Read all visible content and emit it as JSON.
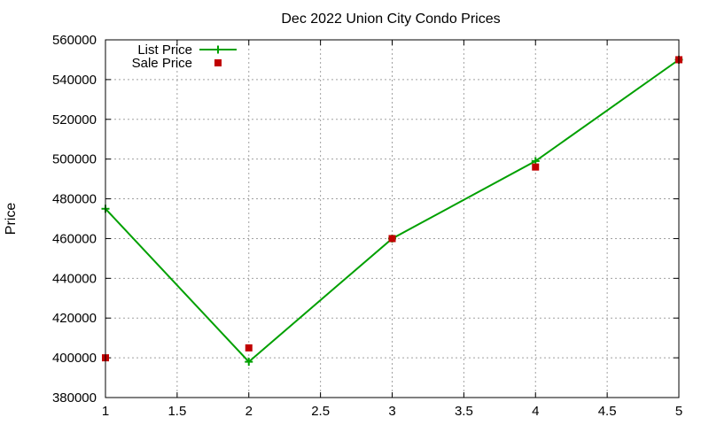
{
  "chart_data": {
    "type": "line",
    "title": "Dec 2022 Union City Condo Prices",
    "xlabel": "",
    "ylabel": "Price",
    "xlim": [
      1,
      5
    ],
    "ylim": [
      380000,
      560000
    ],
    "x_ticks": [
      1,
      1.5,
      2,
      2.5,
      3,
      3.5,
      4,
      4.5,
      5
    ],
    "x_tick_labels": [
      "1",
      "1.5",
      "2",
      "2.5",
      "3",
      "3.5",
      "4",
      "4.5",
      "5"
    ],
    "y_ticks": [
      380000,
      400000,
      420000,
      440000,
      460000,
      480000,
      500000,
      520000,
      540000,
      560000
    ],
    "y_tick_labels": [
      "380000",
      "400000",
      "420000",
      "440000",
      "460000",
      "480000",
      "500000",
      "520000",
      "540000",
      "560000"
    ],
    "grid": true,
    "legend_position": "top-left",
    "series": [
      {
        "name": "List Price",
        "style": "line-with-plus-markers",
        "color": "#00a000",
        "x": [
          1,
          2,
          3,
          4,
          5
        ],
        "y": [
          475000,
          398000,
          460000,
          499000,
          550000
        ]
      },
      {
        "name": "Sale Price",
        "style": "square-markers",
        "color": "#c00000",
        "x": [
          1,
          2,
          3,
          4,
          5
        ],
        "y": [
          400000,
          405000,
          460000,
          496000,
          550000
        ]
      }
    ]
  }
}
